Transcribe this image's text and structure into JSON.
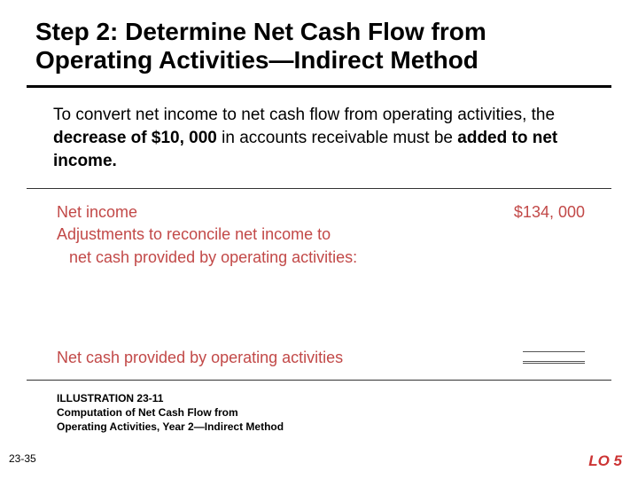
{
  "heading": "Step 2: Determine Net Cash Flow from Operating Activities—Indirect Method",
  "intro": {
    "pre": "To convert net income to net cash flow from operating activities, the ",
    "bold1": "decrease of $10, 000",
    "mid": " in accounts receivable must be ",
    "bold2": "added to net income."
  },
  "statement": {
    "net_income_label": "Net income",
    "net_income_amount": "$134, 000",
    "adj_line1": "Adjustments to reconcile net income to",
    "adj_line2": "net cash provided by operating activities:",
    "final_label": "Net cash provided by operating activities"
  },
  "illustration": {
    "line1": "ILLUSTRATION 23-11",
    "line2": "Computation of Net Cash Flow from",
    "line3": "Operating Activities, Year 2—Indirect Method"
  },
  "page_number": "23-35",
  "lo": "LO 5",
  "colors": {
    "heading": "#000000",
    "statement_text": "#c24948",
    "lo_text": "#cc3333",
    "rule": "#000000"
  },
  "fonts": {
    "heading_size": 28,
    "intro_size": 19,
    "statement_size": 18,
    "illus_size": 12,
    "lo_size": 17
  }
}
